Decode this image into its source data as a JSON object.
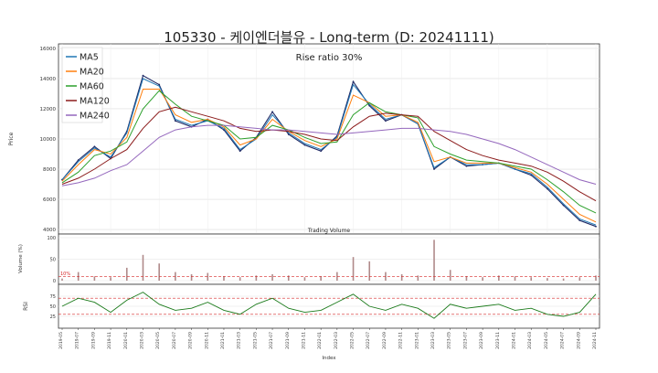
{
  "figure": {
    "title": "105330 - 케이엔더블유 - Long-term (D: 20241111)"
  },
  "chart_data": [
    {
      "type": "line",
      "panel": "price",
      "ylabel": "Price",
      "ylim": [
        3700,
        16300
      ],
      "yticks": [
        4000,
        6000,
        8000,
        10000,
        12000,
        14000,
        16000
      ],
      "annotation": "Rise ratio 30%",
      "legend_placement": "top-left",
      "grid": true,
      "colors": {
        "Price": "#1f2a66",
        "MA5": "#1f77b4",
        "MA20": "#ff7f0e",
        "MA60": "#2ca02c",
        "MA120": "#8b1a1a",
        "MA240": "#9467bd"
      },
      "x_dates": [
        "2019-05",
        "2019-07",
        "2019-09",
        "2019-11",
        "2020-01",
        "2020-03",
        "2020-05",
        "2020-07",
        "2020-09",
        "2020-11",
        "2021-01",
        "2021-03",
        "2021-05",
        "2021-07",
        "2021-09",
        "2021-11",
        "2022-01",
        "2022-03",
        "2022-05",
        "2022-07",
        "2022-09",
        "2022-11",
        "2023-01",
        "2023-03",
        "2023-05",
        "2023-07",
        "2023-09",
        "2023-11",
        "2024-01",
        "2024-03",
        "2024-05",
        "2024-07",
        "2024-09",
        "2024-11"
      ],
      "price_close": [
        7300,
        8600,
        9500,
        8700,
        10500,
        14200,
        13600,
        11200,
        10800,
        11300,
        10600,
        9200,
        10100,
        11800,
        10300,
        9600,
        9200,
        10200,
        13800,
        12200,
        11200,
        11600,
        11000,
        8000,
        8800,
        8200,
        8300,
        8400,
        8000,
        7600,
        6700,
        5600,
        4600,
        4200
      ],
      "series": [
        {
          "name": "MA5",
          "values": [
            7300,
            8500,
            9400,
            8800,
            10400,
            14000,
            13500,
            11300,
            10900,
            11200,
            10700,
            9300,
            10000,
            11600,
            10400,
            9700,
            9300,
            10100,
            13600,
            12300,
            11300,
            11600,
            11000,
            8100,
            8800,
            8300,
            8300,
            8400,
            8000,
            7700,
            6800,
            5700,
            4700,
            4300
          ]
        },
        {
          "name": "MA20",
          "values": [
            7200,
            8300,
            9300,
            9000,
            10100,
            13300,
            13300,
            11600,
            11100,
            11300,
            10800,
            9600,
            10000,
            11300,
            10500,
            9900,
            9500,
            10000,
            12900,
            12400,
            11500,
            11600,
            11100,
            8500,
            8800,
            8400,
            8400,
            8400,
            8100,
            7800,
            7000,
            6000,
            5000,
            4500
          ]
        },
        {
          "name": "MA60",
          "values": [
            7100,
            7800,
            8900,
            9200,
            9800,
            12000,
            13200,
            12300,
            11500,
            11200,
            10900,
            10000,
            10100,
            10900,
            10600,
            10100,
            9700,
            9800,
            11600,
            12400,
            11800,
            11600,
            11400,
            9500,
            9000,
            8600,
            8500,
            8400,
            8200,
            8000,
            7300,
            6500,
            5600,
            5100
          ]
        },
        {
          "name": "MA120",
          "values": [
            7000,
            7400,
            8000,
            8700,
            9300,
            10700,
            11800,
            12100,
            11800,
            11500,
            11200,
            10700,
            10500,
            10600,
            10500,
            10300,
            10000,
            9900,
            10800,
            11500,
            11700,
            11600,
            11500,
            10500,
            9900,
            9300,
            8900,
            8600,
            8400,
            8200,
            7800,
            7200,
            6500,
            5900
          ]
        },
        {
          "name": "MA240",
          "values": [
            6900,
            7100,
            7400,
            7900,
            8300,
            9200,
            10100,
            10600,
            10800,
            10900,
            10900,
            10800,
            10700,
            10600,
            10600,
            10500,
            10400,
            10300,
            10400,
            10500,
            10600,
            10700,
            10700,
            10600,
            10500,
            10300,
            10000,
            9700,
            9300,
            8800,
            8300,
            7800,
            7300,
            7000
          ]
        }
      ]
    },
    {
      "type": "bar",
      "panel": "volume",
      "title": "Trading Volume",
      "ylabel": "Volume (%)",
      "ylim": [
        0,
        100
      ],
      "yticks": [
        0,
        50,
        100
      ],
      "threshold": 10,
      "threshold_label": "10%",
      "bar_color": "#b08a8a",
      "threshold_color": "#d62728",
      "values": [
        5,
        20,
        10,
        8,
        30,
        60,
        40,
        20,
        15,
        18,
        10,
        8,
        12,
        15,
        12,
        8,
        10,
        20,
        55,
        45,
        20,
        15,
        12,
        95,
        25,
        10,
        8,
        12,
        10,
        8,
        6,
        5,
        8,
        12
      ]
    },
    {
      "type": "line",
      "panel": "rsi",
      "ylabel": "RSI",
      "ylim": [
        0,
        100
      ],
      "yticks": [
        25,
        50,
        75
      ],
      "upper_line": 70,
      "lower_line": 30,
      "line_color": "#1a7a1a",
      "band_color": "#d62728",
      "xlabel": "Index",
      "values": [
        50,
        70,
        60,
        35,
        65,
        85,
        55,
        40,
        45,
        60,
        40,
        30,
        55,
        70,
        45,
        35,
        40,
        60,
        80,
        50,
        40,
        55,
        45,
        20,
        55,
        45,
        50,
        55,
        40,
        45,
        30,
        25,
        35,
        80
      ]
    }
  ]
}
